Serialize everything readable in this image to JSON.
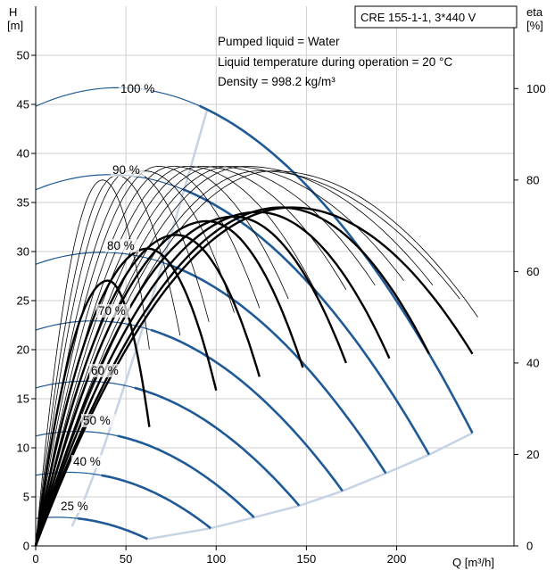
{
  "header": {
    "title": "CRE 155-1-1, 3*440 V",
    "info_lines": [
      "Pumped liquid = Water",
      "Liquid temperature during operation = 20 °C",
      "Density = 998.2 kg/m³"
    ]
  },
  "axes": {
    "h_unit_top": "H",
    "h_unit_bottom": "[m]",
    "eta_unit_top": "eta",
    "eta_unit_bottom": "[%]",
    "q_label": "Q [m³/h]"
  },
  "colors": {
    "head_curve": "#1f5a96",
    "efficiency_curve": "#000000",
    "envelope": "#c5d3e4",
    "grid": "#cfcfcf"
  },
  "chart_data": {
    "type": "line",
    "x_unit": "m³/h",
    "xlim": [
      0,
      265
    ],
    "x_ticks": [
      "0",
      "50",
      "100",
      "150",
      "200"
    ],
    "y_left_lim": [
      0,
      55
    ],
    "y_left_ticks": [
      "0",
      "5",
      "10",
      "15",
      "20",
      "25",
      "30",
      "35",
      "40",
      "45",
      "50"
    ],
    "y_right_lim": [
      0,
      118
    ],
    "y_right_ticks": [
      "0",
      "20",
      "40",
      "60",
      "80",
      "100"
    ],
    "grid": true,
    "head_curves": [
      {
        "label": "100 %",
        "h0": 44.8,
        "qmax": 242,
        "hend": 11.5
      },
      {
        "label": "90 %",
        "h0": 36.3,
        "qmax": 218,
        "hend": 9.3
      },
      {
        "label": "80 %",
        "h0": 28.7,
        "qmax": 194,
        "hend": 7.4
      },
      {
        "label": "70 %",
        "h0": 22.0,
        "qmax": 170,
        "hend": 5.6
      },
      {
        "label": "60 %",
        "h0": 16.1,
        "qmax": 146,
        "hend": 4.1
      },
      {
        "label": "50 %",
        "h0": 11.2,
        "qmax": 121,
        "hend": 2.9
      },
      {
        "label": "40 %",
        "h0": 7.2,
        "qmax": 97,
        "hend": 1.8
      },
      {
        "label": "25 %",
        "h0": 2.8,
        "qmax": 62,
        "hend": 0.7
      }
    ],
    "efficiency_curves": [
      {
        "peak_q": 37,
        "peak_eta": 80,
        "qend": 63,
        "eta_end": 43,
        "bold": false
      },
      {
        "peak_q": 45,
        "peak_eta": 81,
        "qend": 80,
        "eta_end": 46,
        "bold": false
      },
      {
        "peak_q": 52,
        "peak_eta": 82,
        "qend": 96,
        "eta_end": 49,
        "bold": false
      },
      {
        "peak_q": 60,
        "peak_eta": 82,
        "qend": 110,
        "eta_end": 51,
        "bold": false
      },
      {
        "peak_q": 68,
        "peak_eta": 83,
        "qend": 124,
        "eta_end": 52,
        "bold": false
      },
      {
        "peak_q": 76,
        "peak_eta": 83,
        "qend": 140,
        "eta_end": 54,
        "bold": false
      },
      {
        "peak_q": 84,
        "peak_eta": 83,
        "qend": 156,
        "eta_end": 55,
        "bold": false
      },
      {
        "peak_q": 92,
        "peak_eta": 83,
        "qend": 172,
        "eta_end": 56,
        "bold": false
      },
      {
        "peak_q": 100,
        "peak_eta": 83,
        "qend": 188,
        "eta_end": 57,
        "bold": false
      },
      {
        "peak_q": 108,
        "peak_eta": 83,
        "qend": 204,
        "eta_end": 58,
        "bold": false
      },
      {
        "peak_q": 116,
        "peak_eta": 83,
        "qend": 220,
        "eta_end": 57,
        "bold": false
      },
      {
        "peak_q": 124,
        "peak_eta": 82,
        "qend": 235,
        "eta_end": 54,
        "bold": false
      },
      {
        "peak_q": 132,
        "peak_eta": 82,
        "qend": 245,
        "eta_end": 50,
        "bold": false
      },
      {
        "peak_q": 40,
        "peak_eta": 58,
        "qend": 63,
        "eta_end": 26,
        "bold": true
      },
      {
        "peak_q": 62,
        "peak_eta": 65,
        "qend": 100,
        "eta_end": 34,
        "bold": true
      },
      {
        "peak_q": 78,
        "peak_eta": 68,
        "qend": 124,
        "eta_end": 37,
        "bold": true
      },
      {
        "peak_q": 95,
        "peak_eta": 71,
        "qend": 148,
        "eta_end": 39,
        "bold": true
      },
      {
        "peak_q": 110,
        "peak_eta": 72,
        "qend": 172,
        "eta_end": 40,
        "bold": true
      },
      {
        "peak_q": 123,
        "peak_eta": 73,
        "qend": 196,
        "eta_end": 41,
        "bold": true
      },
      {
        "peak_q": 136,
        "peak_eta": 74,
        "qend": 218,
        "eta_end": 42,
        "bold": true
      },
      {
        "peak_q": 142,
        "peak_eta": 74,
        "qend": 242,
        "eta_end": 42,
        "bold": true
      }
    ]
  }
}
